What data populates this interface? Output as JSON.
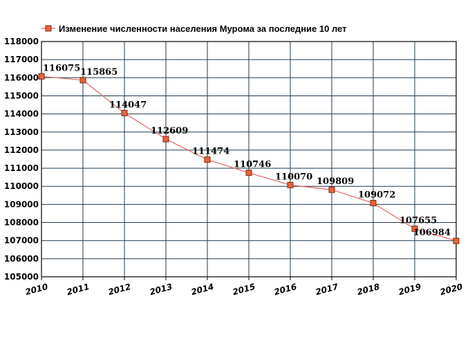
{
  "chart_data": {
    "type": "line",
    "title": "",
    "xlabel": "",
    "ylabel": "",
    "x": [
      "2010",
      "2011",
      "2012",
      "2013",
      "2014",
      "2015",
      "2016",
      "2017",
      "2018",
      "2019",
      "2020"
    ],
    "series": [
      {
        "name": "Изменение численности населения Мурома за последние 10 лет",
        "values": [
          116075,
          115865,
          114047,
          112609,
          111474,
          110746,
          110070,
          109809,
          109072,
          107655,
          106984
        ],
        "labels": [
          "116075",
          "115865",
          "114047",
          "112609",
          "111474",
          "110746",
          "110070",
          "109809",
          "109072",
          "107655",
          "106984"
        ]
      }
    ],
    "ylim": [
      105000,
      118000
    ],
    "yticks": [
      "105000",
      "106000",
      "107000",
      "108000",
      "109000",
      "110000",
      "111000",
      "112000",
      "113000",
      "114000",
      "115000",
      "116000",
      "117000",
      "118000"
    ],
    "grid": true,
    "legend_position": "top-left",
    "colors": {
      "line": "#e06666",
      "marker_fill": "#e8643c",
      "marker_stroke": "#7a2a10",
      "grid": "#1f3a4d",
      "axis": "#000000"
    }
  }
}
